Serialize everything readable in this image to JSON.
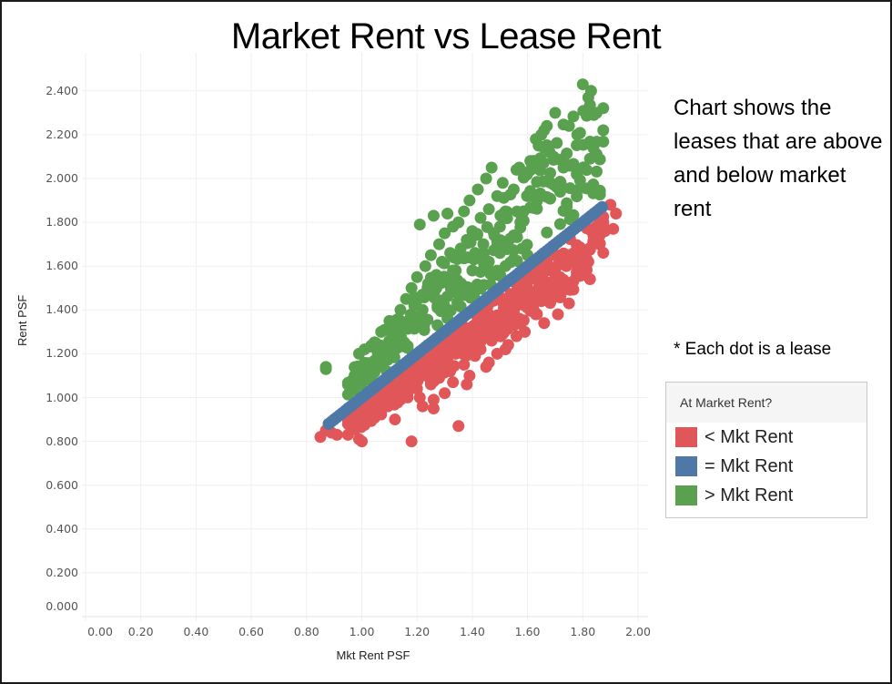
{
  "title": "Market Rent vs Lease Rent",
  "annotation": {
    "text": "Chart shows the leases that are above and below market rent",
    "footnote": "* Each dot is a lease"
  },
  "axes": {
    "x": {
      "label": "Mkt Rent PSF",
      "ticks": [
        "0.00",
        "0.20",
        "0.40",
        "0.60",
        "0.80",
        "1.00",
        "1.20",
        "1.40",
        "1.60",
        "1.80",
        "2.00"
      ]
    },
    "y": {
      "label": "Rent PSF",
      "ticks": [
        "0.000",
        "0.200",
        "0.400",
        "0.600",
        "0.800",
        "1.000",
        "1.200",
        "1.400",
        "1.600",
        "1.800",
        "2.000",
        "2.200",
        "2.400"
      ]
    }
  },
  "legend": {
    "title": "At Market Rent?",
    "items": [
      {
        "label": "< Mkt Rent",
        "color": "#E15759"
      },
      {
        "label": "= Mkt Rent",
        "color": "#4E79A7"
      },
      {
        "label": "> Mkt Rent",
        "color": "#59A14F"
      }
    ]
  },
  "chart_data": {
    "type": "scatter",
    "title": "Market Rent vs Lease Rent",
    "xlabel": "Mkt Rent PSF",
    "ylabel": "Rent PSF",
    "xlim": [
      0.0,
      2.02
    ],
    "ylim": [
      0.0,
      2.45
    ],
    "grid": true,
    "legend_position": "right",
    "legend_title": "At Market Rent?",
    "series": [
      {
        "name": "< Mkt Rent",
        "color": "#E15759",
        "points": [
          [
            0.85,
            0.82
          ],
          [
            0.87,
            0.85
          ],
          [
            0.89,
            0.84
          ],
          [
            0.91,
            0.83
          ],
          [
            0.95,
            0.9
          ],
          [
            0.97,
            0.88
          ],
          [
            0.99,
            0.81
          ],
          [
            1.0,
            0.8
          ],
          [
            0.98,
            0.86
          ],
          [
            1.02,
            0.92
          ],
          [
            1.03,
            0.96
          ],
          [
            1.05,
            0.94
          ],
          [
            1.07,
            0.99
          ],
          [
            1.09,
            1.0
          ],
          [
            1.1,
            0.97
          ],
          [
            1.12,
            0.9
          ],
          [
            1.14,
            1.02
          ],
          [
            1.16,
            1.05
          ],
          [
            1.18,
            0.8
          ],
          [
            1.19,
            1.08
          ],
          [
            1.2,
            1.04
          ],
          [
            1.21,
            1.0
          ],
          [
            1.22,
            1.1
          ],
          [
            1.24,
            1.12
          ],
          [
            1.25,
            1.06
          ],
          [
            1.26,
            0.99
          ],
          [
            1.27,
            1.14
          ],
          [
            1.28,
            1.09
          ],
          [
            1.29,
            1.16
          ],
          [
            1.3,
            1.02
          ],
          [
            1.31,
            1.18
          ],
          [
            1.32,
            1.12
          ],
          [
            1.33,
            1.07
          ],
          [
            1.34,
            1.2
          ],
          [
            1.35,
            0.87
          ],
          [
            1.36,
            1.22
          ],
          [
            1.37,
            1.15
          ],
          [
            1.38,
            1.24
          ],
          [
            1.39,
            1.1
          ],
          [
            1.4,
            1.26
          ],
          [
            1.41,
            1.19
          ],
          [
            1.42,
            1.28
          ],
          [
            1.43,
            1.22
          ],
          [
            1.44,
            1.3
          ],
          [
            1.45,
            1.14
          ],
          [
            1.46,
            1.32
          ],
          [
            1.47,
            1.26
          ],
          [
            1.48,
            1.34
          ],
          [
            1.49,
            1.2
          ],
          [
            1.5,
            1.36
          ],
          [
            1.51,
            1.29
          ],
          [
            1.52,
            1.38
          ],
          [
            1.53,
            1.24
          ],
          [
            1.54,
            1.4
          ],
          [
            1.55,
            1.33
          ],
          [
            1.56,
            1.42
          ],
          [
            1.57,
            1.36
          ],
          [
            1.58,
            1.44
          ],
          [
            1.59,
            1.3
          ],
          [
            1.6,
            1.46
          ],
          [
            1.61,
            1.4
          ],
          [
            1.62,
            1.48
          ],
          [
            1.63,
            1.38
          ],
          [
            1.64,
            1.5
          ],
          [
            1.65,
            1.44
          ],
          [
            1.66,
            1.52
          ],
          [
            1.68,
            1.46
          ],
          [
            1.7,
            1.56
          ],
          [
            1.72,
            1.47
          ],
          [
            1.74,
            1.6
          ],
          [
            1.75,
            1.43
          ],
          [
            1.76,
            1.62
          ],
          [
            1.78,
            1.58
          ],
          [
            1.8,
            1.66
          ],
          [
            1.82,
            1.62
          ],
          [
            1.84,
            1.72
          ],
          [
            1.86,
            1.7
          ],
          [
            1.88,
            1.76
          ],
          [
            1.9,
            1.88
          ],
          [
            1.91,
            1.77
          ],
          [
            1.92,
            1.84
          ],
          [
            1.52,
            1.22
          ],
          [
            1.46,
            1.16
          ],
          [
            1.38,
            1.06
          ],
          [
            1.26,
            0.95
          ],
          [
            1.22,
            0.96
          ],
          [
            1.56,
            1.28
          ],
          [
            1.66,
            1.34
          ],
          [
            1.71,
            1.38
          ],
          [
            1.58,
            1.46
          ]
        ]
      },
      {
        "name": "= Mkt Rent",
        "color": "#4E79A7",
        "points": [
          [
            0.88,
            0.88
          ],
          [
            0.9,
            0.9
          ],
          [
            0.95,
            0.95
          ],
          [
            0.98,
            0.98
          ],
          [
            1.0,
            1.0
          ],
          [
            1.03,
            1.03
          ],
          [
            1.06,
            1.06
          ],
          [
            1.09,
            1.09
          ],
          [
            1.12,
            1.12
          ],
          [
            1.15,
            1.15
          ],
          [
            1.18,
            1.18
          ],
          [
            1.21,
            1.21
          ],
          [
            1.24,
            1.24
          ],
          [
            1.27,
            1.27
          ],
          [
            1.3,
            1.3
          ],
          [
            1.33,
            1.33
          ],
          [
            1.36,
            1.36
          ],
          [
            1.39,
            1.39
          ],
          [
            1.42,
            1.42
          ],
          [
            1.45,
            1.45
          ],
          [
            1.48,
            1.48
          ],
          [
            1.51,
            1.51
          ],
          [
            1.54,
            1.54
          ],
          [
            1.57,
            1.57
          ],
          [
            1.6,
            1.6
          ],
          [
            1.63,
            1.63
          ],
          [
            1.66,
            1.66
          ],
          [
            1.69,
            1.69
          ],
          [
            1.72,
            1.72
          ],
          [
            1.75,
            1.75
          ],
          [
            1.78,
            1.78
          ],
          [
            1.81,
            1.81
          ],
          [
            1.84,
            1.84
          ],
          [
            1.87,
            1.87
          ]
        ]
      },
      {
        "name": "> Mkt Rent",
        "color": "#59A14F",
        "points": [
          [
            0.87,
            1.14
          ],
          [
            0.87,
            1.13
          ],
          [
            0.99,
            1.2
          ],
          [
            1.01,
            1.22
          ],
          [
            1.03,
            1.08
          ],
          [
            1.05,
            1.25
          ],
          [
            1.07,
            1.3
          ],
          [
            1.09,
            1.12
          ],
          [
            1.1,
            1.35
          ],
          [
            1.12,
            1.28
          ],
          [
            1.14,
            1.4
          ],
          [
            1.16,
            1.45
          ],
          [
            1.17,
            1.33
          ],
          [
            1.18,
            1.5
          ],
          [
            1.19,
            1.42
          ],
          [
            1.2,
            1.55
          ],
          [
            1.21,
            1.79
          ],
          [
            1.22,
            1.47
          ],
          [
            1.23,
            1.6
          ],
          [
            1.24,
            1.52
          ],
          [
            1.25,
            1.65
          ],
          [
            1.26,
            1.83
          ],
          [
            1.27,
            1.56
          ],
          [
            1.28,
            1.7
          ],
          [
            1.29,
            1.62
          ],
          [
            1.3,
            1.75
          ],
          [
            1.31,
            1.84
          ],
          [
            1.32,
            1.66
          ],
          [
            1.33,
            1.78
          ],
          [
            1.34,
            1.58
          ],
          [
            1.35,
            1.8
          ],
          [
            1.36,
            1.64
          ],
          [
            1.37,
            1.85
          ],
          [
            1.38,
            1.72
          ],
          [
            1.39,
            1.9
          ],
          [
            1.4,
            1.76
          ],
          [
            1.41,
            1.66
          ],
          [
            1.42,
            1.95
          ],
          [
            1.43,
            1.82
          ],
          [
            1.44,
            1.7
          ],
          [
            1.45,
            2.0
          ],
          [
            1.46,
            1.86
          ],
          [
            1.47,
            2.05
          ],
          [
            1.48,
            1.74
          ],
          [
            1.49,
            1.92
          ],
          [
            1.5,
            1.78
          ],
          [
            1.51,
            1.98
          ],
          [
            1.52,
            1.85
          ],
          [
            1.53,
            1.69
          ],
          [
            1.55,
            1.95
          ],
          [
            1.56,
            2.04
          ],
          [
            1.57,
            2.05
          ],
          [
            1.58,
            1.82
          ],
          [
            1.6,
            1.65
          ],
          [
            1.61,
            2.08
          ],
          [
            1.62,
            1.92
          ],
          [
            1.63,
            2.18
          ],
          [
            1.64,
            2.15
          ],
          [
            1.65,
            2.2
          ],
          [
            1.66,
            2.22
          ],
          [
            1.67,
            2.24
          ],
          [
            1.68,
            2.12
          ],
          [
            1.7,
            2.3
          ],
          [
            1.72,
            1.98
          ],
          [
            1.73,
            2.05
          ],
          [
            1.75,
            2.24
          ],
          [
            1.78,
            2.2
          ],
          [
            1.8,
            2.43
          ],
          [
            1.82,
            2.37
          ],
          [
            1.83,
            2.4
          ],
          [
            1.84,
            2.29
          ],
          [
            1.85,
            2.3
          ],
          [
            1.6,
            1.92
          ],
          [
            1.52,
            1.6
          ],
          [
            1.46,
            1.62
          ],
          [
            1.4,
            1.58
          ],
          [
            1.34,
            1.48
          ],
          [
            1.28,
            1.44
          ],
          [
            1.22,
            1.4
          ],
          [
            1.16,
            1.32
          ],
          [
            1.1,
            1.26
          ],
          [
            1.05,
            1.17
          ],
          [
            1.02,
            1.12
          ],
          [
            1.33,
            1.58
          ],
          [
            1.36,
            1.52
          ],
          [
            1.27,
            1.5
          ],
          [
            1.2,
            1.34
          ],
          [
            1.58,
            1.68
          ],
          [
            1.55,
            1.74
          ],
          [
            1.5,
            1.66
          ]
        ]
      }
    ]
  }
}
